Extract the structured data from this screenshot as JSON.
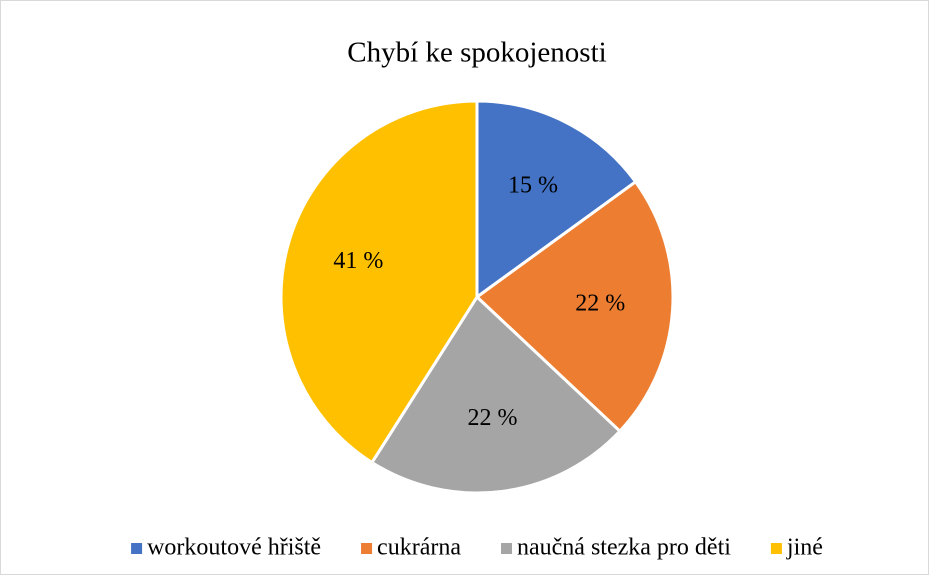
{
  "chart_data": {
    "type": "pie",
    "title": "Chybí ke spokojenosti",
    "categories": [
      "workoutové hřiště",
      "cukrárna",
      "naučná stezka pro děti",
      "jiné"
    ],
    "values": [
      15,
      22,
      22,
      41
    ],
    "value_labels": [
      "15 %",
      "22 %",
      "22 %",
      "41 %"
    ],
    "colors": [
      "#4472c4",
      "#ed7d31",
      "#a5a5a5",
      "#ffc000"
    ],
    "legend": "bottom"
  }
}
